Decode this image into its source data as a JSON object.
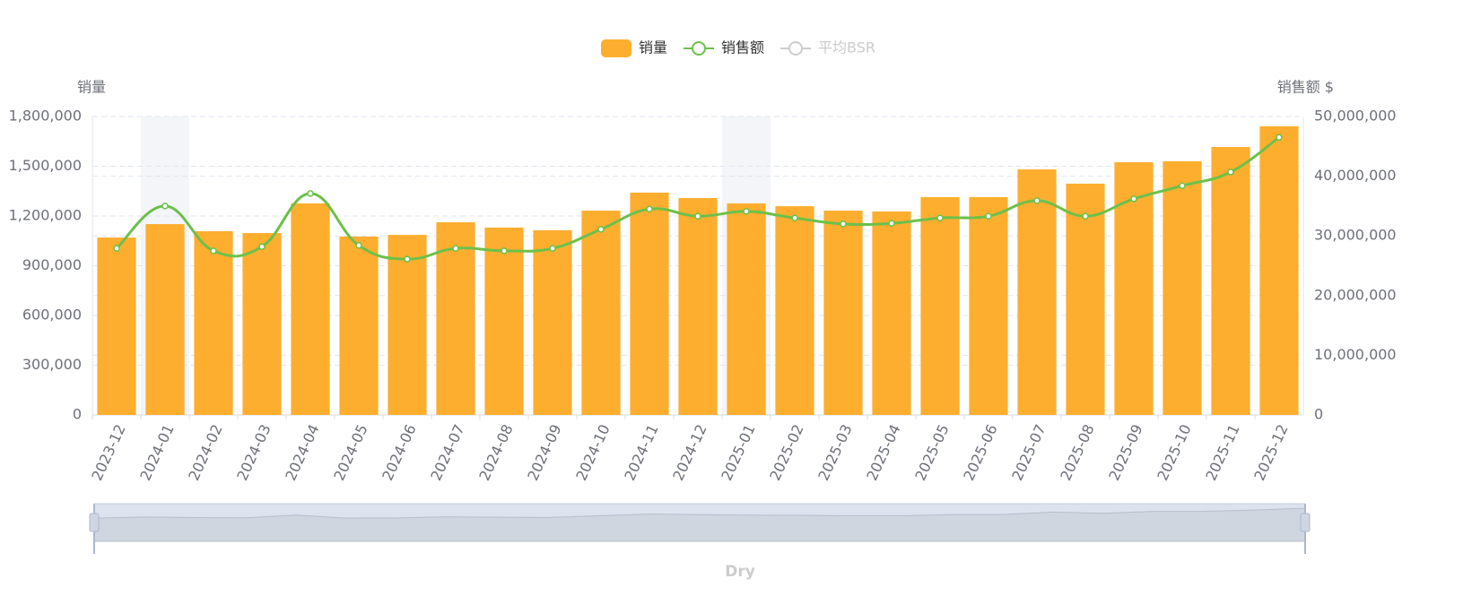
{
  "chart_data": {
    "type": "bar-line",
    "footer": "Dry",
    "y_axis_label": "销量",
    "y2_axis_label": "销售额 $",
    "categories": [
      "2023-12",
      "2024-01",
      "2024-02",
      "2024-03",
      "2024-04",
      "2024-05",
      "2024-06",
      "2024-07",
      "2024-08",
      "2024-09",
      "2024-10",
      "2024-11",
      "2024-12",
      "2025-01",
      "2025-02",
      "2025-03",
      "2025-04",
      "2025-05",
      "2025-06",
      "2025-07",
      "2025-08",
      "2025-09",
      "2025-10",
      "2025-11",
      "2025-12"
    ],
    "shaded_categories": [
      1,
      13
    ],
    "series": [
      {
        "name": "销量",
        "type": "bar",
        "color": "#fdae2f",
        "axis": "y",
        "values": [
          1070000,
          1151000,
          1108000,
          1097000,
          1276000,
          1076000,
          1086000,
          1162000,
          1130000,
          1114000,
          1232000,
          1341000,
          1308000,
          1276000,
          1259000,
          1232000,
          1227000,
          1314000,
          1314000,
          1481000,
          1395000,
          1524000,
          1530000,
          1616000,
          1741000
        ]
      },
      {
        "name": "销售额",
        "type": "line",
        "color": "#6cc04a",
        "axis": "y2",
        "smooth": true,
        "values": [
          27900000,
          35000000,
          27500000,
          28200000,
          37100000,
          28400000,
          26100000,
          27900000,
          27500000,
          27900000,
          31100000,
          34500000,
          33300000,
          34100000,
          33000000,
          32000000,
          32100000,
          33000000,
          33300000,
          35900000,
          33300000,
          36200000,
          38400000,
          40700000,
          46500000
        ]
      },
      {
        "name": "平均BSR",
        "type": "line",
        "color": "#cccccc",
        "axis": "y2",
        "visible": false
      }
    ],
    "ylim": [
      0,
      1800000
    ],
    "yticks": [
      0,
      {
        "value": 300000,
        "label": "300,000"
      },
      {
        "value": 600000,
        "label": "600,000"
      },
      {
        "value": 900000,
        "label": "900,000"
      },
      {
        "value": 1200000,
        "label": "1,200,000"
      },
      {
        "value": 1500000,
        "label": "1,500,000"
      },
      {
        "value": 1800000,
        "label": "1,800,000"
      }
    ],
    "y2lim": [
      0,
      50000000
    ],
    "y2ticks": [
      0,
      {
        "value": 10000000,
        "label": "10,000,000"
      },
      {
        "value": 20000000,
        "label": "20,000,000"
      },
      {
        "value": 30000000,
        "label": "30,000,000"
      },
      {
        "value": 40000000,
        "label": "40,000,000"
      },
      {
        "value": 50000000,
        "label": "50,000,000"
      }
    ],
    "grid": true,
    "legend": "top"
  }
}
